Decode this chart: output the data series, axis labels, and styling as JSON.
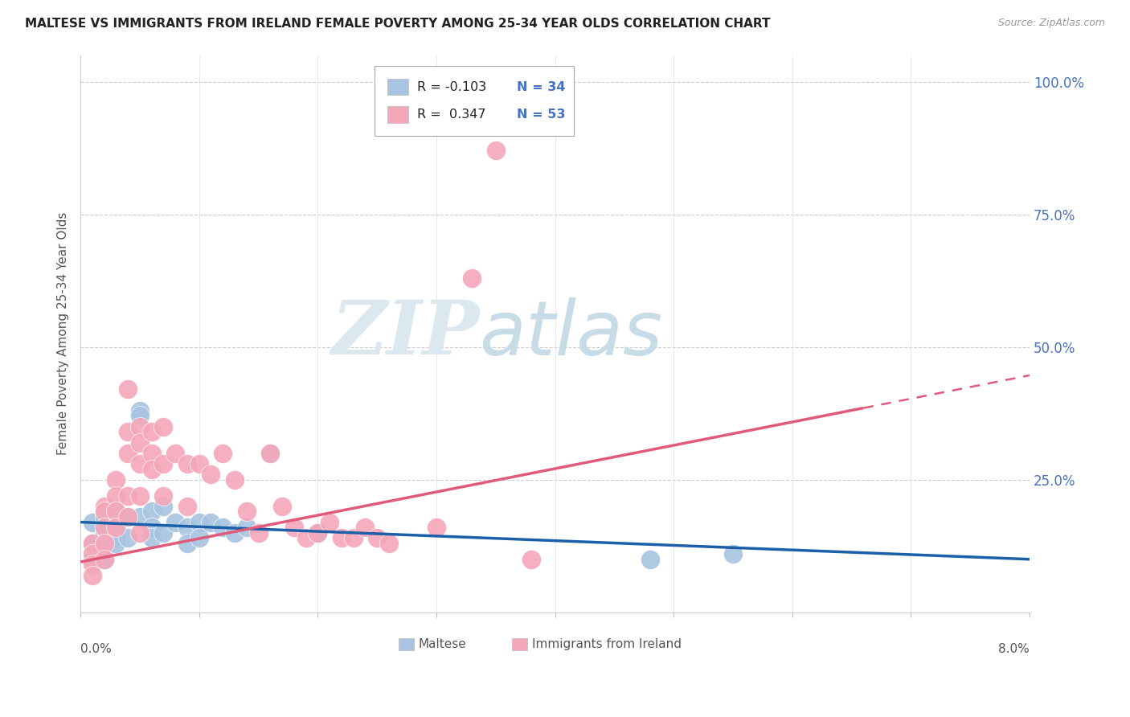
{
  "title": "MALTESE VS IMMIGRANTS FROM IRELAND FEMALE POVERTY AMONG 25-34 YEAR OLDS CORRELATION CHART",
  "source": "Source: ZipAtlas.com",
  "ylabel": "Female Poverty Among 25-34 Year Olds",
  "right_yticks": [
    "100.0%",
    "75.0%",
    "50.0%",
    "25.0%"
  ],
  "right_ytick_vals": [
    1.0,
    0.75,
    0.5,
    0.25
  ],
  "maltese_R": "-0.103",
  "maltese_N": "34",
  "ireland_R": "0.347",
  "ireland_N": "53",
  "maltese_color": "#a8c4e0",
  "ireland_color": "#f4a7b9",
  "maltese_line_color": "#1a5fa8",
  "ireland_line_color": "#e05a7a",
  "background_color": "#ffffff",
  "watermark_zip": "ZIP",
  "watermark_atlas": "atlas",
  "maltese_x": [
    0.001,
    0.001,
    0.001,
    0.002,
    0.002,
    0.002,
    0.002,
    0.003,
    0.003,
    0.003,
    0.003,
    0.004,
    0.004,
    0.005,
    0.005,
    0.005,
    0.006,
    0.006,
    0.006,
    0.007,
    0.007,
    0.008,
    0.009,
    0.009,
    0.01,
    0.01,
    0.011,
    0.012,
    0.013,
    0.014,
    0.016,
    0.02,
    0.048,
    0.055
  ],
  "maltese_y": [
    0.17,
    0.13,
    0.1,
    0.18,
    0.15,
    0.12,
    0.1,
    0.19,
    0.16,
    0.14,
    0.13,
    0.18,
    0.14,
    0.38,
    0.37,
    0.18,
    0.19,
    0.16,
    0.14,
    0.2,
    0.15,
    0.17,
    0.16,
    0.13,
    0.17,
    0.14,
    0.17,
    0.16,
    0.15,
    0.16,
    0.3,
    0.15,
    0.1,
    0.11
  ],
  "ireland_x": [
    0.001,
    0.001,
    0.001,
    0.001,
    0.002,
    0.002,
    0.002,
    0.002,
    0.002,
    0.003,
    0.003,
    0.003,
    0.003,
    0.004,
    0.004,
    0.004,
    0.004,
    0.004,
    0.005,
    0.005,
    0.005,
    0.005,
    0.005,
    0.006,
    0.006,
    0.006,
    0.007,
    0.007,
    0.007,
    0.008,
    0.009,
    0.009,
    0.01,
    0.011,
    0.012,
    0.013,
    0.014,
    0.015,
    0.016,
    0.017,
    0.018,
    0.019,
    0.02,
    0.021,
    0.022,
    0.023,
    0.024,
    0.025,
    0.026,
    0.03,
    0.033,
    0.035,
    0.038
  ],
  "ireland_y": [
    0.13,
    0.11,
    0.09,
    0.07,
    0.2,
    0.19,
    0.16,
    0.13,
    0.1,
    0.25,
    0.22,
    0.19,
    0.16,
    0.42,
    0.34,
    0.3,
    0.22,
    0.18,
    0.35,
    0.32,
    0.28,
    0.22,
    0.15,
    0.34,
    0.3,
    0.27,
    0.35,
    0.28,
    0.22,
    0.3,
    0.28,
    0.2,
    0.28,
    0.26,
    0.3,
    0.25,
    0.19,
    0.15,
    0.3,
    0.2,
    0.16,
    0.14,
    0.15,
    0.17,
    0.14,
    0.14,
    0.16,
    0.14,
    0.13,
    0.16,
    0.63,
    0.87,
    0.1
  ],
  "xlim": [
    0.0,
    0.08
  ],
  "ylim": [
    0.0,
    1.05
  ],
  "ireland_line_x_solid_end": 0.066,
  "ireland_line_x_dash_end": 0.08
}
